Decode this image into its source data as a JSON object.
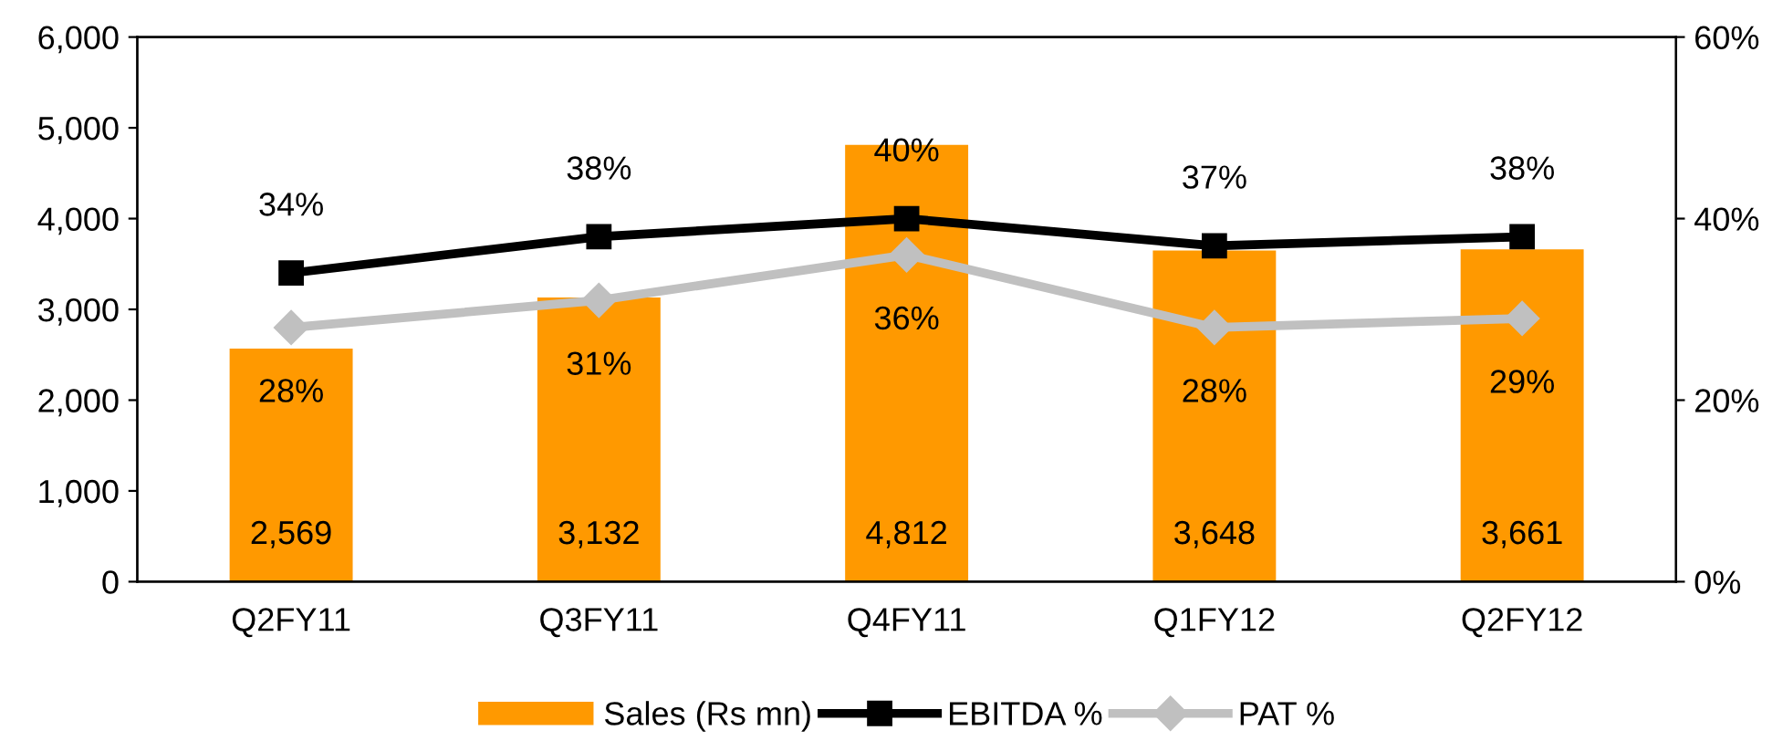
{
  "chart_data": {
    "type": "bar",
    "categories": [
      "Q2FY11",
      "Q3FY11",
      "Q4FY11",
      "Q1FY12",
      "Q2FY12"
    ],
    "series": [
      {
        "name": "Sales (Rs mn)",
        "color": "#ff9900",
        "values": [
          2569,
          3132,
          4812,
          3648,
          3661
        ],
        "value_labels": [
          "2,569",
          "3,132",
          "4,812",
          "3,648",
          "3,661"
        ]
      },
      {
        "name": "EBITDA %",
        "type": "line",
        "axis": "y2",
        "color": "#000000",
        "marker": "square",
        "values": [
          34,
          38,
          40,
          37,
          38
        ],
        "value_labels": [
          "34%",
          "38%",
          "40%",
          "37%",
          "38%"
        ]
      },
      {
        "name": "PAT %",
        "type": "line",
        "axis": "y2",
        "color": "#c0c0c0",
        "marker": "diamond",
        "values": [
          28,
          31,
          36,
          28,
          29
        ],
        "value_labels": [
          "28%",
          "31%",
          "36%",
          "28%",
          "29%"
        ]
      }
    ],
    "ylim": [
      0,
      6000
    ],
    "yticks": [
      {
        "value": 0,
        "label": "0"
      },
      {
        "value": 1000,
        "label": "1,000"
      },
      {
        "value": 2000,
        "label": "2,000"
      },
      {
        "value": 3000,
        "label": "3,000"
      },
      {
        "value": 4000,
        "label": "4,000"
      },
      {
        "value": 5000,
        "label": "5,000"
      },
      {
        "value": 6000,
        "label": "6,000"
      }
    ],
    "y2lim": [
      0,
      60
    ],
    "y2ticks": [
      {
        "value": 0,
        "label": "0%"
      },
      {
        "value": 20,
        "label": "20%"
      },
      {
        "value": 40,
        "label": "40%"
      },
      {
        "value": 60,
        "label": "60%"
      }
    ],
    "legend": "bottom",
    "grid": false,
    "line_style": "solid"
  }
}
